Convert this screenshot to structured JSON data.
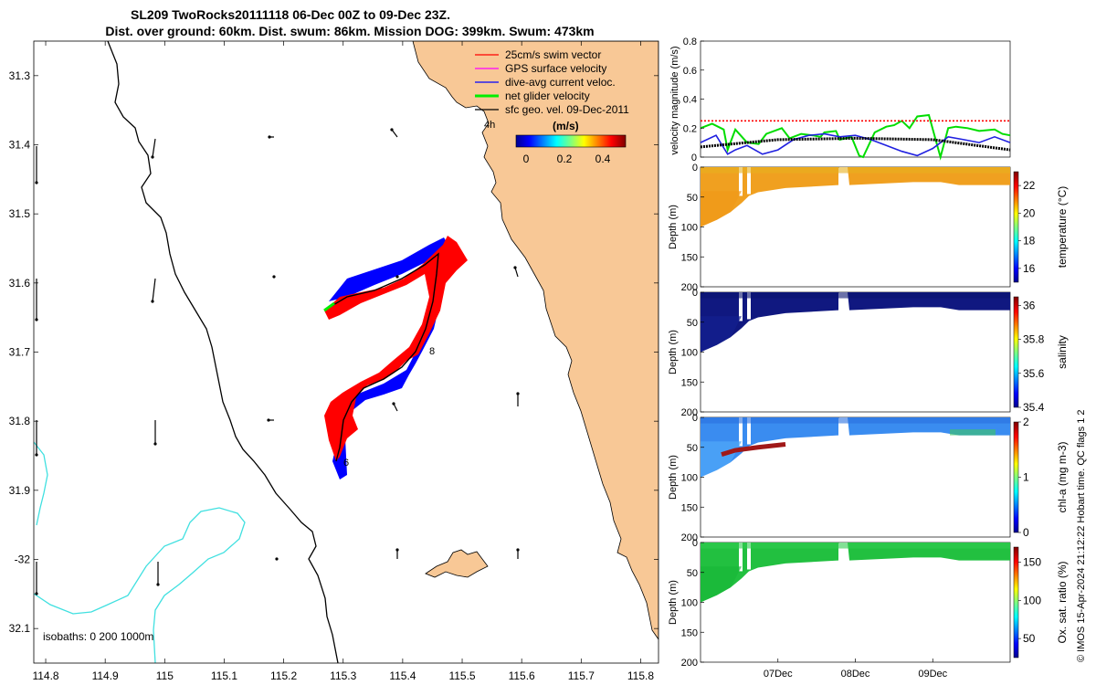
{
  "colors": {
    "land": "#f8c896",
    "swim": "#ff0000",
    "gps": "#ff00ff",
    "current": "#0000ff",
    "net": "#00ee00",
    "geo": "#000000",
    "isobath_200": "#000000",
    "isobath_1000": "#40e0e0",
    "speed_line": "#00dd00",
    "current_line": "#2020e0",
    "swim_line": "#ff0000"
  },
  "chart_data": [
    {
      "type": "map",
      "title_line1": "SL209 TwoRocks20111118 06-Dec 00Z to 09-Dec 23Z.",
      "title_line2": "Dist. over ground: 60km. Dist. swum: 86km. Mission DOG: 399km. Swum: 473km",
      "lon_range": [
        114.78,
        115.83
      ],
      "lat_range": [
        -32.15,
        -31.25
      ],
      "lon_ticks": [
        "114.8",
        "114.9",
        "115",
        "115.1",
        "115.2",
        "115.3",
        "115.4",
        "115.5",
        "115.6",
        "115.7",
        "115.8"
      ],
      "lat_ticks": [
        "31.3",
        "31.4",
        "31.5",
        "31.6",
        "31.7",
        "31.8",
        "31.9",
        "-32",
        "32.1"
      ],
      "legend": [
        {
          "label": "25cm/s swim vector",
          "color_key": "swim"
        },
        {
          "label": "GPS surface velocity",
          "color_key": "gps"
        },
        {
          "label": "dive-avg current veloc.",
          "color_key": "current"
        },
        {
          "label": "net glider velocity",
          "color_key": "net"
        },
        {
          "label": "sfc geo. vel. 09-Dec-2011",
          "color_key": "geo"
        }
      ],
      "colorbar": {
        "label": "(m/s)",
        "ticks": [
          "0",
          "0.2",
          "0.4"
        ],
        "range": [
          0,
          0.5
        ],
        "note": "4h"
      },
      "isobaths_label": "isobaths: 0   200  1000m",
      "track_annotations": [
        "8",
        "6"
      ]
    },
    {
      "type": "line",
      "ylabel": "velocity magnitude (m/s)",
      "ylim": [
        0,
        0.8
      ],
      "yticks": [
        "0",
        "0.2",
        "0.4",
        "0.6",
        "0.8"
      ],
      "x_days": [
        0,
        4
      ],
      "series": [
        {
          "name": "net glider velocity",
          "color_key": "speed_line",
          "x": [
            0,
            0.15,
            0.3,
            0.35,
            0.45,
            0.6,
            0.75,
            0.85,
            1.05,
            1.15,
            1.3,
            1.45,
            1.55,
            1.6,
            1.75,
            1.8,
            1.95,
            2.05,
            2.1,
            2.25,
            2.4,
            2.5,
            2.6,
            2.7,
            2.8,
            2.95,
            3.1,
            3.2,
            3.3,
            3.45,
            3.6,
            3.8,
            3.9,
            4.0
          ],
          "y": [
            0.2,
            0.23,
            0.19,
            0.05,
            0.19,
            0.1,
            0.09,
            0.16,
            0.2,
            0.13,
            0.16,
            0.15,
            0.14,
            0.17,
            0.18,
            0.12,
            0.14,
            0.01,
            0.0,
            0.17,
            0.21,
            0.22,
            0.25,
            0.2,
            0.28,
            0.29,
            0.0,
            0.2,
            0.21,
            0.2,
            0.18,
            0.19,
            0.16,
            0.15
          ]
        },
        {
          "name": "dive-avg current",
          "color_key": "current_line",
          "x": [
            0,
            0.2,
            0.35,
            0.45,
            0.6,
            0.8,
            1.0,
            1.2,
            1.4,
            1.6,
            1.8,
            2.0,
            2.2,
            2.4,
            2.6,
            2.8,
            3.0,
            3.2,
            3.4,
            3.6,
            3.8,
            4.0
          ],
          "y": [
            0.1,
            0.15,
            0.02,
            0.05,
            0.08,
            0.02,
            0.05,
            0.12,
            0.15,
            0.16,
            0.14,
            0.15,
            0.12,
            0.08,
            0.04,
            0.01,
            0.06,
            0.14,
            0.12,
            0.1,
            0.14,
            0.1
          ],
          "dashed": false
        },
        {
          "name": "swim speed",
          "color_key": "swim_line",
          "x": [
            0,
            4
          ],
          "y": [
            0.25,
            0.25
          ],
          "dashed": true
        },
        {
          "name": "geostrophic",
          "color_key": "geo",
          "x": [
            0,
            1.0,
            2.0,
            3.0,
            4.0
          ],
          "y": [
            0.07,
            0.12,
            0.13,
            0.12,
            0.05
          ],
          "dashed": true
        }
      ]
    },
    {
      "type": "heatmap",
      "ylabel": "Depth (m)",
      "ylim": [
        0,
        200
      ],
      "yticks": [
        "0",
        "50",
        "100",
        "150",
        "200"
      ],
      "cbar_label": "temperature (°C)",
      "cbar_ticks": [
        "22",
        "20",
        "18",
        "16"
      ],
      "cbar_range": [
        15,
        23
      ]
    },
    {
      "type": "heatmap",
      "ylabel": "Depth (m)",
      "ylim": [
        0,
        200
      ],
      "yticks": [
        "0",
        "50",
        "100",
        "150",
        "200"
      ],
      "cbar_label": "salinity",
      "cbar_ticks": [
        "36",
        "35.8",
        "35.6",
        "35.4"
      ],
      "cbar_range": [
        35.4,
        36.05
      ]
    },
    {
      "type": "heatmap",
      "ylabel": "Depth (m)",
      "ylim": [
        0,
        200
      ],
      "yticks": [
        "0",
        "50",
        "100",
        "150",
        "200"
      ],
      "cbar_label": "chl-a (mg m-3)",
      "cbar_ticks": [
        "2",
        "1",
        "0"
      ],
      "cbar_range": [
        0,
        2
      ]
    },
    {
      "type": "heatmap",
      "ylabel": "Depth (m)",
      "ylim": [
        0,
        200
      ],
      "yticks": [
        "0",
        "50",
        "100",
        "150",
        "200"
      ],
      "cbar_label": "Ox. sat. ratio (%)",
      "cbar_ticks": [
        "150",
        "100",
        "50"
      ],
      "cbar_range": [
        25,
        170
      ],
      "xticks": [
        "07Dec",
        "08Dec",
        "09Dec"
      ]
    }
  ],
  "footer_note": "© IMOS 15-Apr-2024 21:12:22 Hobart time. QC flags 1  2"
}
